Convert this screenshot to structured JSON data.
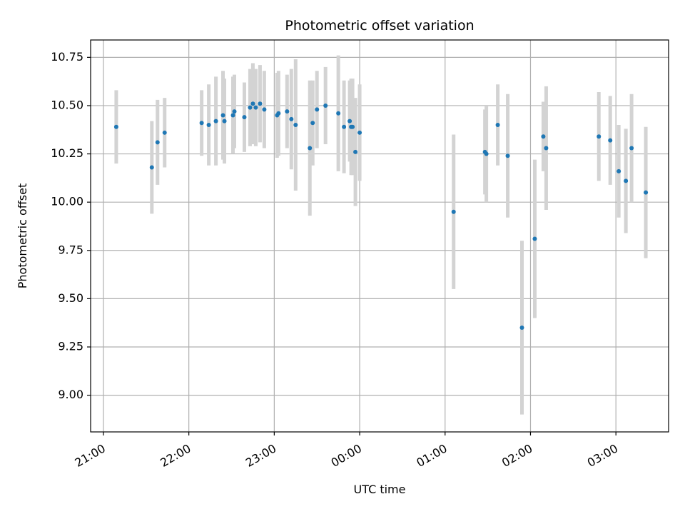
{
  "chart_data": {
    "type": "scatter",
    "title": "Photometric offset variation",
    "xlabel": "UTC time",
    "ylabel": "Photometric offset",
    "grid": true,
    "x_ticks": [
      "21:00",
      "22:00",
      "23:00",
      "00:00",
      "01:00",
      "02:00",
      "03:00"
    ],
    "y_ticks": [
      "9.00",
      "9.25",
      "9.50",
      "9.75",
      "10.00",
      "10.25",
      "10.50",
      "10.75"
    ],
    "xlim": [
      "20:51",
      "03:37"
    ],
    "ylim": [
      8.81,
      10.84
    ],
    "colors": {
      "points": "#1f77b4",
      "errorbars": "#d3d3d3",
      "grid": "#b0b0b0"
    },
    "series": [
      {
        "x": [
          "21:09",
          "21:34",
          "21:38",
          "21:43",
          "22:09",
          "22:14",
          "22:19",
          "22:24",
          "22:25",
          "22:31",
          "22:32",
          "22:39",
          "22:43",
          "22:45",
          "22:47",
          "22:50",
          "22:53",
          "23:02",
          "23:03",
          "23:09",
          "23:12",
          "23:15",
          "23:25",
          "23:27",
          "23:30",
          "23:36",
          "23:45",
          "23:49",
          "23:53",
          "23:54",
          "23:55",
          "23:57",
          "24:00",
          "25:06",
          "25:28",
          "25:29",
          "25:37",
          "25:44",
          "25:54",
          "26:03",
          "26:09",
          "26:11",
          "26:48",
          "26:56",
          "27:02",
          "27:07",
          "27:11",
          "27:21"
        ],
        "y": [
          10.39,
          10.18,
          10.31,
          10.36,
          10.41,
          10.4,
          10.42,
          10.45,
          10.42,
          10.45,
          10.47,
          10.44,
          10.49,
          10.51,
          10.49,
          10.51,
          10.48,
          10.45,
          10.46,
          10.47,
          10.43,
          10.4,
          10.28,
          10.41,
          10.48,
          10.5,
          10.46,
          10.39,
          10.42,
          10.39,
          10.39,
          10.26,
          10.36,
          9.95,
          10.26,
          10.25,
          10.4,
          10.24,
          9.35,
          9.81,
          10.34,
          10.28,
          10.34,
          10.32,
          10.16,
          10.11,
          10.28,
          10.05
        ],
        "err": [
          0.19,
          0.24,
          0.22,
          0.18,
          0.17,
          0.21,
          0.23,
          0.23,
          0.22,
          0.2,
          0.19,
          0.18,
          0.2,
          0.21,
          0.2,
          0.2,
          0.2,
          0.22,
          0.22,
          0.19,
          0.26,
          0.34,
          0.35,
          0.22,
          0.2,
          0.2,
          0.3,
          0.24,
          0.21,
          0.25,
          0.25,
          0.28,
          0.25,
          0.4,
          0.22,
          0.25,
          0.21,
          0.32,
          0.45,
          0.41,
          0.18,
          0.32,
          0.23,
          0.23,
          0.24,
          0.27,
          0.28,
          0.34
        ]
      }
    ]
  }
}
